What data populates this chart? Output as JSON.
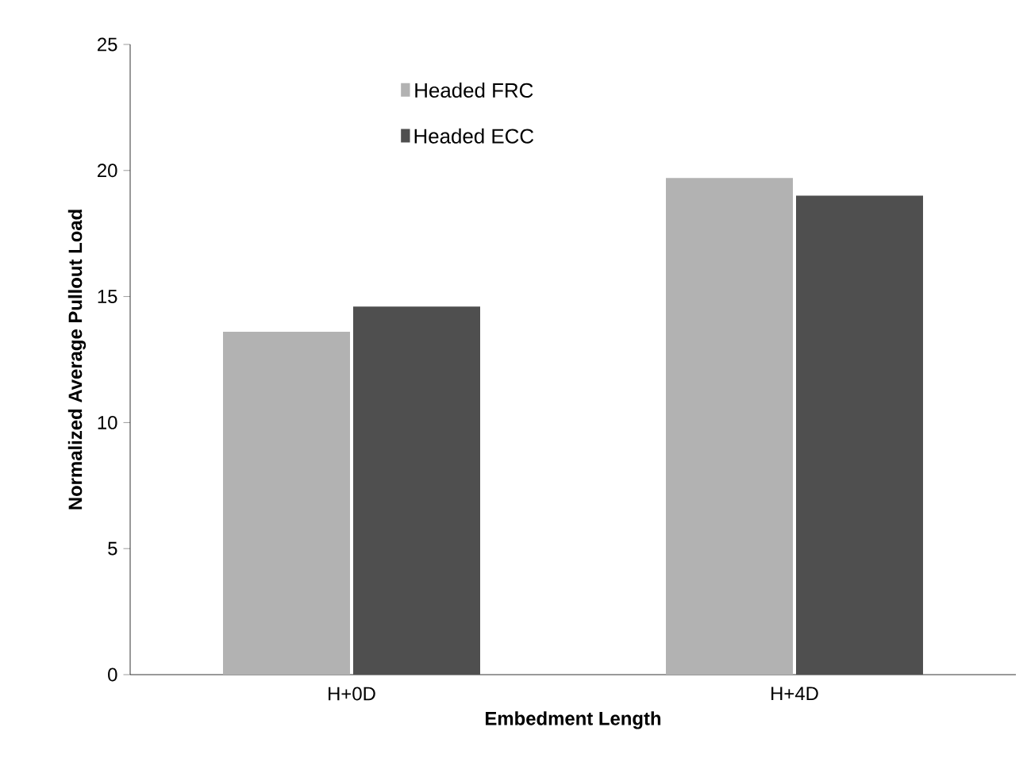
{
  "chart_data": {
    "type": "bar",
    "xlabel": "Embedment Length",
    "ylabel": "Normalized Average Pullout Load",
    "categories": [
      "H+0D",
      "H+4D"
    ],
    "series": [
      {
        "name": "Headed FRC",
        "color": "#b2b2b2",
        "values": [
          13.6,
          19.7
        ]
      },
      {
        "name": "Headed ECC",
        "color": "#4f4f4f",
        "values": [
          14.6,
          19.0
        ]
      }
    ],
    "ylim": [
      0,
      25
    ],
    "yticks": [
      0,
      5,
      10,
      15,
      20,
      25
    ],
    "grid": false,
    "legend": "top left"
  }
}
